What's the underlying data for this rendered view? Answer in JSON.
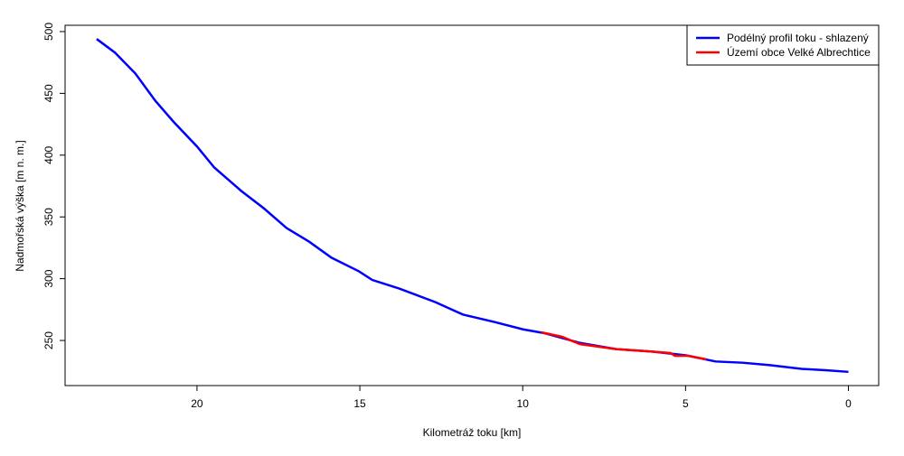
{
  "chart_data": {
    "type": "line",
    "xlabel": "Kilometráž toku [km]",
    "ylabel": "Nadmořská výška [m n. m.]",
    "xlim": [
      24.05,
      -0.93
    ],
    "xticks": [
      20,
      15,
      10,
      5,
      0
    ],
    "ylim": [
      213.5,
      505.1
    ],
    "yticks": [
      250,
      300,
      350,
      400,
      450,
      500
    ],
    "legend": "top-right",
    "series": [
      {
        "name": "Podélný profil toku  - shlazený",
        "color": "#0000ff",
        "x": [
          23.08,
          22.52,
          21.89,
          21.28,
          20.72,
          20.0,
          19.47,
          18.64,
          17.95,
          17.25,
          16.56,
          15.87,
          15.03,
          14.62,
          13.79,
          12.68,
          11.84,
          10.87,
          9.99,
          9.35,
          8.24,
          7.13,
          6.02,
          4.99,
          4.08,
          3.25,
          2.41,
          1.44,
          0.75,
          0
        ],
        "values": [
          494,
          483,
          466,
          444,
          427,
          407,
          390,
          371,
          357,
          341,
          330,
          317,
          306,
          299,
          292,
          281,
          271,
          265,
          259,
          256,
          248,
          243,
          241,
          238,
          233,
          232,
          230,
          227,
          226,
          224.6
        ]
      },
      {
        "name": "Území obce Velké Albrechtice",
        "color": "#ff0000",
        "x": [
          9.43,
          8.79,
          8.24,
          7.13,
          6.02,
          5.46,
          5.33,
          4.91,
          4.36
        ],
        "values": [
          256.6,
          253,
          247,
          243,
          241,
          239.8,
          237.6,
          237.6,
          234.7
        ]
      }
    ]
  }
}
